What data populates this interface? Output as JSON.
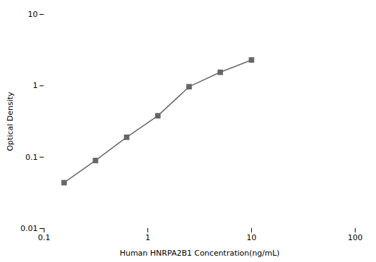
{
  "chart_data": {
    "type": "line",
    "x": [
      0.156,
      0.313,
      0.625,
      1.25,
      2.5,
      5.0,
      10.0
    ],
    "values": [
      0.044,
      0.09,
      0.19,
      0.38,
      0.97,
      1.55,
      2.3
    ],
    "xlabel": "Human HNRPA2B1 Concentration(ng/mL)",
    "ylabel": "Optical Density",
    "xlim": [
      0.1,
      100
    ],
    "ylim": [
      0.01,
      10
    ],
    "xticks": [
      0.1,
      1,
      10,
      100
    ],
    "yticks": [
      0.01,
      0.1,
      1,
      10
    ],
    "log": true,
    "grid": false,
    "color": "#666666",
    "marker": "square"
  }
}
